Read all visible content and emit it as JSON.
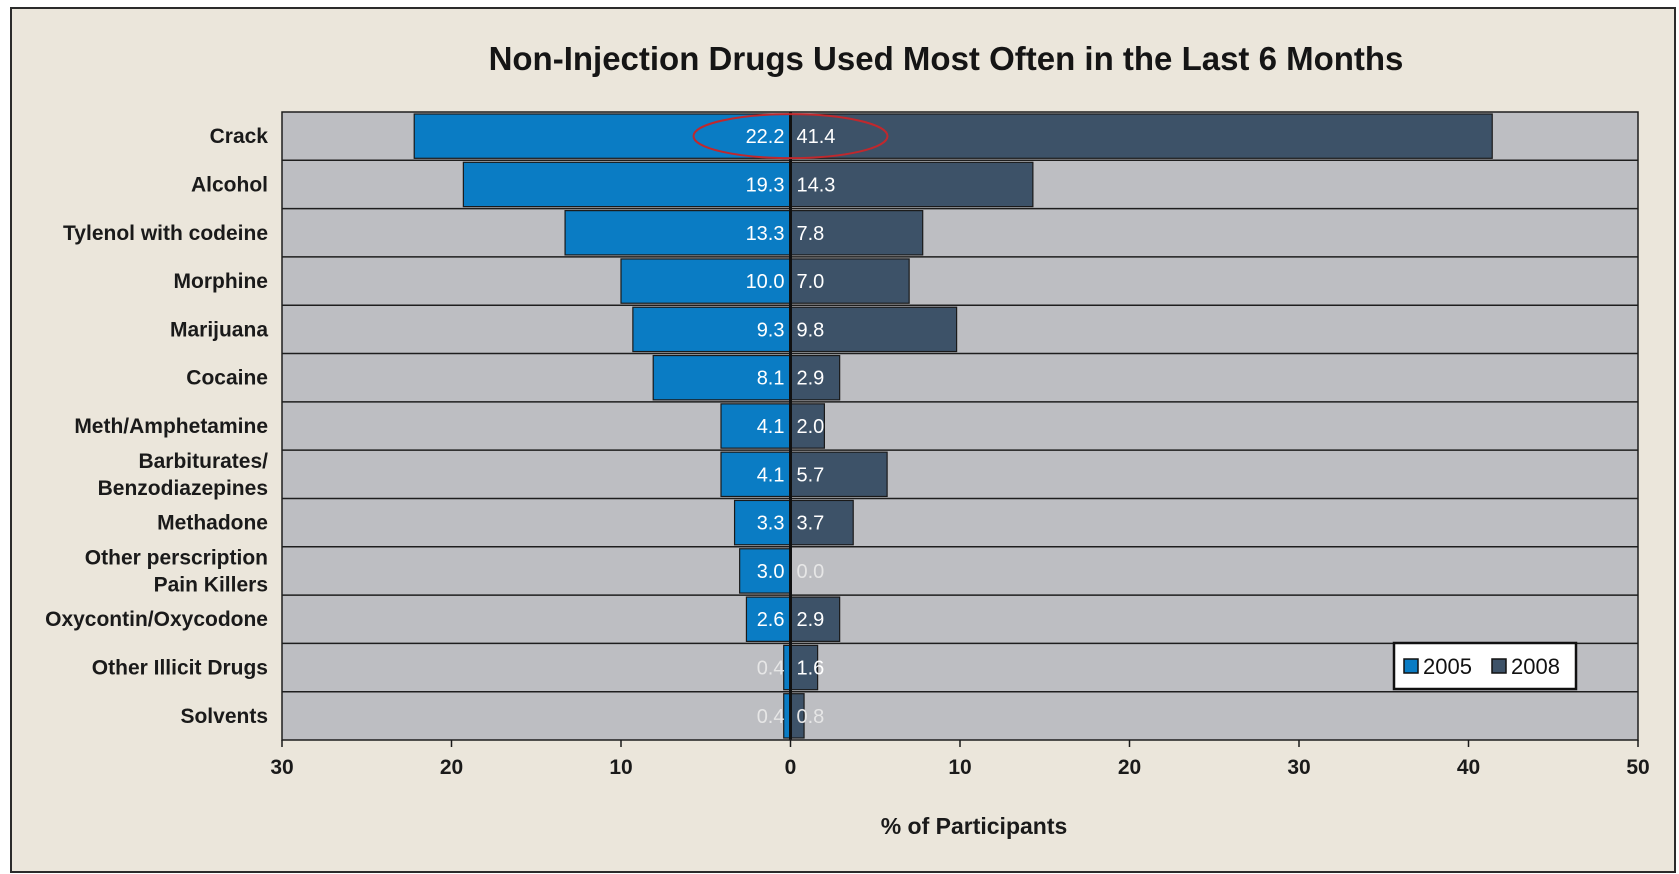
{
  "chart_data": {
    "type": "bar",
    "orientation": "horizontal-diverging",
    "title": "Non-Injection Drugs Used Most Often in the Last 6 Months",
    "xlabel": "% of Participants",
    "ylabel": "",
    "categories": [
      [
        "Crack"
      ],
      [
        "Alcohol"
      ],
      [
        "Tylenol with codeine"
      ],
      [
        "Morphine"
      ],
      [
        "Marijuana"
      ],
      [
        "Cocaine"
      ],
      [
        "Meth/Amphetamine"
      ],
      [
        "Barbiturates/",
        "Benzodiazepines"
      ],
      [
        "Methadone"
      ],
      [
        "Other perscription",
        "Pain Killers"
      ],
      [
        "Oxycontin/Oxycodone"
      ],
      [
        "Other Illicit Drugs"
      ],
      [
        "Solvents"
      ]
    ],
    "series": [
      {
        "name": "2005",
        "direction": "left",
        "color": "#0a7cc4",
        "values": [
          22.2,
          19.3,
          13.3,
          10.0,
          9.3,
          8.1,
          4.1,
          4.1,
          3.3,
          3.0,
          2.6,
          0.4,
          0.4
        ],
        "labels": [
          "22.2",
          "19.3",
          "13.3",
          "10.0",
          "9.3",
          "8.1",
          "4.1",
          "4.1",
          "3.3",
          "3.0",
          "2.6",
          "0.4",
          "0.4"
        ]
      },
      {
        "name": "2008",
        "direction": "right",
        "color": "#3d5268",
        "values": [
          41.4,
          14.3,
          7.8,
          7.0,
          9.8,
          2.9,
          2.0,
          5.7,
          3.7,
          0.0,
          2.9,
          1.6,
          0.8
        ],
        "labels": [
          "41.4",
          "14.3",
          "7.8",
          "7.0",
          "9.8",
          "2.9",
          "2.0",
          "5.7",
          "3.7",
          "0.0",
          "2.9",
          "1.6",
          "0.8"
        ]
      }
    ],
    "xlim": [
      -30,
      50
    ],
    "xticks": [
      -30,
      -20,
      -10,
      0,
      10,
      20,
      30,
      40,
      50
    ],
    "xtick_labels": [
      "30",
      "20",
      "10",
      "0",
      "10",
      "20",
      "30",
      "40",
      "50"
    ],
    "legend": {
      "position": "bottom-right",
      "entries": [
        "2005",
        "2008"
      ]
    },
    "highlight": {
      "category": "Crack",
      "shape": "ellipse",
      "color": "#c0282d"
    },
    "grid": false
  }
}
